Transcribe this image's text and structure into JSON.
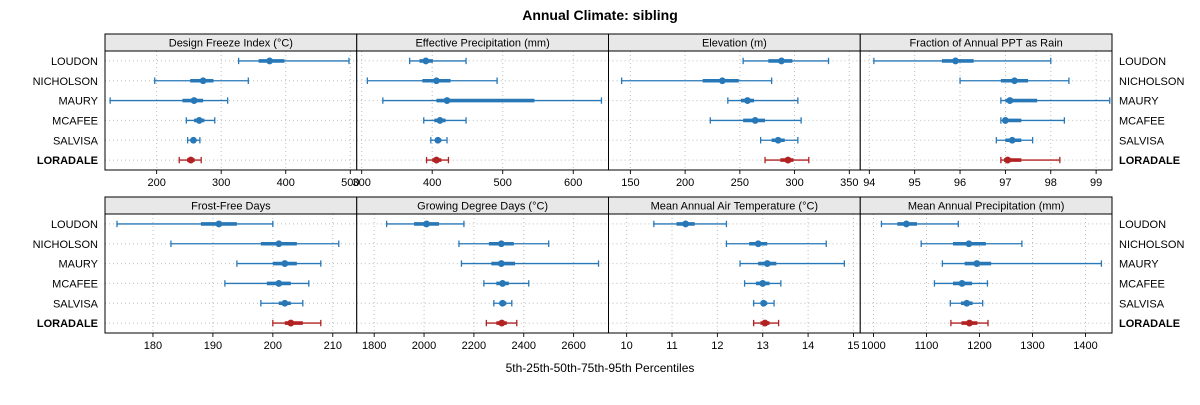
{
  "title": "Annual Climate: sibling",
  "xlabel": "5th-25th-50th-75th-95th Percentiles",
  "stations": [
    "LOUDON",
    "NICHOLSON",
    "MAURY",
    "MCAFEE",
    "SALVISA",
    "LORADALE"
  ],
  "highlight_station": "LORADALE",
  "colors": {
    "normal": "#2878b8",
    "highlight": "#b22222",
    "strip_bg": "#e8e8e8",
    "grid": "#bdbdbd",
    "border": "#000000"
  },
  "chart_data": {
    "type": "dotplot-percentiles",
    "percentile_labels": [
      "5th",
      "25th",
      "50th",
      "75th",
      "95th"
    ],
    "grid": "dotted",
    "legend": "none",
    "panels": [
      {
        "title": "Design Freeze Index (°C)",
        "row": 0,
        "xlim": [
          120,
          510
        ],
        "ticks": [
          200,
          300,
          400,
          500
        ],
        "values": [
          [
            327,
            358,
            375,
            398,
            498
          ],
          [
            197,
            252,
            272,
            288,
            342
          ],
          [
            128,
            240,
            258,
            272,
            310
          ],
          [
            246,
            258,
            266,
            274,
            290
          ],
          [
            248,
            253,
            257,
            261,
            267
          ],
          [
            235,
            247,
            253,
            259,
            269
          ]
        ]
      },
      {
        "title": "Effective Precipitation (mm)",
        "row": 0,
        "xlim": [
          293,
          650
        ],
        "ticks": [
          300,
          400,
          500,
          600
        ],
        "values": [
          [
            368,
            382,
            391,
            401,
            448
          ],
          [
            308,
            386,
            406,
            426,
            492
          ],
          [
            330,
            406,
            421,
            545,
            640
          ],
          [
            388,
            403,
            411,
            419,
            448
          ],
          [
            398,
            404,
            408,
            413,
            421
          ],
          [
            392,
            400,
            406,
            413,
            423
          ]
        ]
      },
      {
        "title": "Elevation (m)",
        "row": 0,
        "xlim": [
          130,
          360
        ],
        "ticks": [
          150,
          200,
          250,
          300,
          350
        ],
        "values": [
          [
            253,
            276,
            288,
            298,
            331
          ],
          [
            142,
            216,
            234,
            249,
            279
          ],
          [
            239,
            251,
            257,
            263,
            303
          ],
          [
            223,
            253,
            264,
            273,
            306
          ],
          [
            269,
            279,
            285,
            291,
            303
          ],
          [
            273,
            287,
            294,
            299,
            313
          ]
        ]
      },
      {
        "title": "Fraction of Annual PPT as Rain",
        "row": 0,
        "xlim": [
          93.8,
          99.35
        ],
        "ticks": [
          94,
          95,
          96,
          97,
          98,
          99
        ],
        "values": [
          [
            94.1,
            95.6,
            95.9,
            96.3,
            98.0
          ],
          [
            96.0,
            96.9,
            97.2,
            97.5,
            98.4
          ],
          [
            96.9,
            97.0,
            97.1,
            97.7,
            99.3
          ],
          [
            96.9,
            96.95,
            97.0,
            97.35,
            98.3
          ],
          [
            96.8,
            97.0,
            97.15,
            97.35,
            97.6
          ],
          [
            96.9,
            96.97,
            97.05,
            97.35,
            98.2
          ]
        ]
      },
      {
        "title": "Frost-Free Days",
        "row": 1,
        "xlim": [
          172,
          214
        ],
        "ticks": [
          180,
          190,
          200,
          210
        ],
        "values": [
          [
            174,
            188,
            191,
            194,
            200
          ],
          [
            183,
            198,
            201,
            204,
            211
          ],
          [
            194,
            200,
            202,
            204,
            208
          ],
          [
            192,
            199,
            201,
            203,
            206
          ],
          [
            198,
            201,
            202,
            203,
            205
          ],
          [
            200,
            202,
            203,
            205,
            208
          ]
        ]
      },
      {
        "title": "Growing Degree Days (°C)",
        "row": 1,
        "xlim": [
          1730,
          2740
        ],
        "ticks": [
          1800,
          2000,
          2200,
          2400,
          2600
        ],
        "values": [
          [
            1850,
            1960,
            2010,
            2060,
            2160
          ],
          [
            2140,
            2260,
            2310,
            2360,
            2500
          ],
          [
            2150,
            2270,
            2310,
            2365,
            2700
          ],
          [
            2240,
            2290,
            2315,
            2340,
            2420
          ],
          [
            2280,
            2302,
            2315,
            2330,
            2352
          ],
          [
            2250,
            2290,
            2312,
            2332,
            2372
          ]
        ]
      },
      {
        "title": "Mean Annual Air Temperature (°C)",
        "row": 1,
        "xlim": [
          9.6,
          15.15
        ],
        "ticks": [
          10,
          11,
          12,
          13,
          14,
          15
        ],
        "values": [
          [
            10.6,
            11.1,
            11.3,
            11.5,
            12.2
          ],
          [
            12.2,
            12.7,
            12.9,
            13.1,
            14.4
          ],
          [
            12.5,
            12.9,
            13.1,
            13.3,
            14.8
          ],
          [
            12.6,
            12.85,
            13.0,
            13.15,
            13.4
          ],
          [
            12.8,
            12.95,
            13.02,
            13.1,
            13.25
          ],
          [
            12.8,
            12.95,
            13.05,
            13.15,
            13.35
          ]
        ]
      },
      {
        "title": "Mean Annual Precipitation (mm)",
        "row": 1,
        "xlim": [
          975,
          1450
        ],
        "ticks": [
          1000,
          1100,
          1200,
          1300,
          1400
        ],
        "values": [
          [
            1015,
            1045,
            1062,
            1082,
            1160
          ],
          [
            1090,
            1150,
            1180,
            1212,
            1280
          ],
          [
            1130,
            1172,
            1195,
            1222,
            1430
          ],
          [
            1115,
            1150,
            1167,
            1186,
            1215
          ],
          [
            1145,
            1165,
            1176,
            1187,
            1206
          ],
          [
            1146,
            1166,
            1181,
            1196,
            1216
          ]
        ]
      }
    ]
  }
}
